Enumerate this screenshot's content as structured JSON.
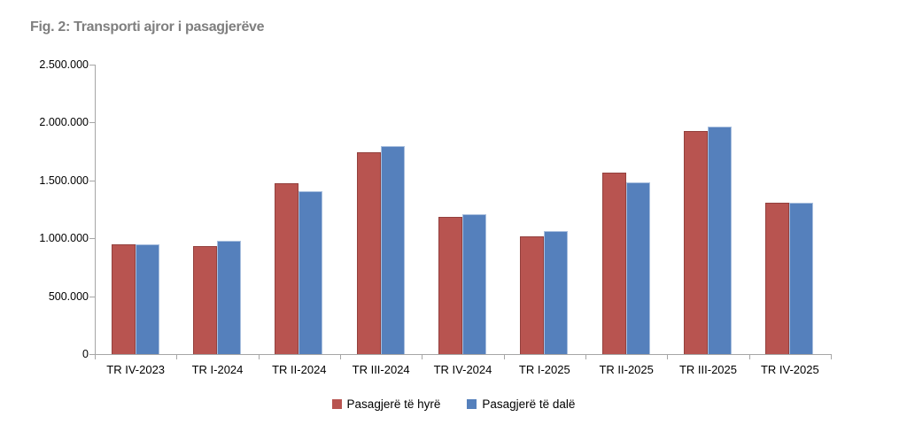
{
  "chart_data": {
    "type": "bar",
    "title": "Fig. 2: Transporti ajror i pasagjerëve",
    "categories": [
      "TR IV-2023",
      "TR I-2024",
      "TR II-2024",
      "TR III-2024",
      "TR IV-2024",
      "TR I-2025",
      "TR II-2025",
      "TR III-2025",
      "TR IV-2025"
    ],
    "series": [
      {
        "name": "Pasagjerë të hyrë",
        "color": "#b85450",
        "border_color": "#93403d",
        "values": [
          950000,
          930000,
          1475000,
          1745000,
          1185000,
          1020000,
          1570000,
          1925000,
          1305000
        ]
      },
      {
        "name": "Pasagjerë të dalë",
        "color": "#5580bc",
        "border_color": "#a9bfde",
        "values": [
          945000,
          975000,
          1405000,
          1795000,
          1205000,
          1065000,
          1480000,
          1965000,
          1310000
        ]
      }
    ],
    "xlabel": "",
    "ylabel": "",
    "ylim": [
      0,
      2500000
    ],
    "ytick_step": 500000,
    "ytick_labels": [
      "0",
      "500.000",
      "1.000.000",
      "1.500.000",
      "2.000.000",
      "2.500.000"
    ],
    "grid": false,
    "legend_position": "bottom",
    "axis_color": "#a6a6a6"
  }
}
